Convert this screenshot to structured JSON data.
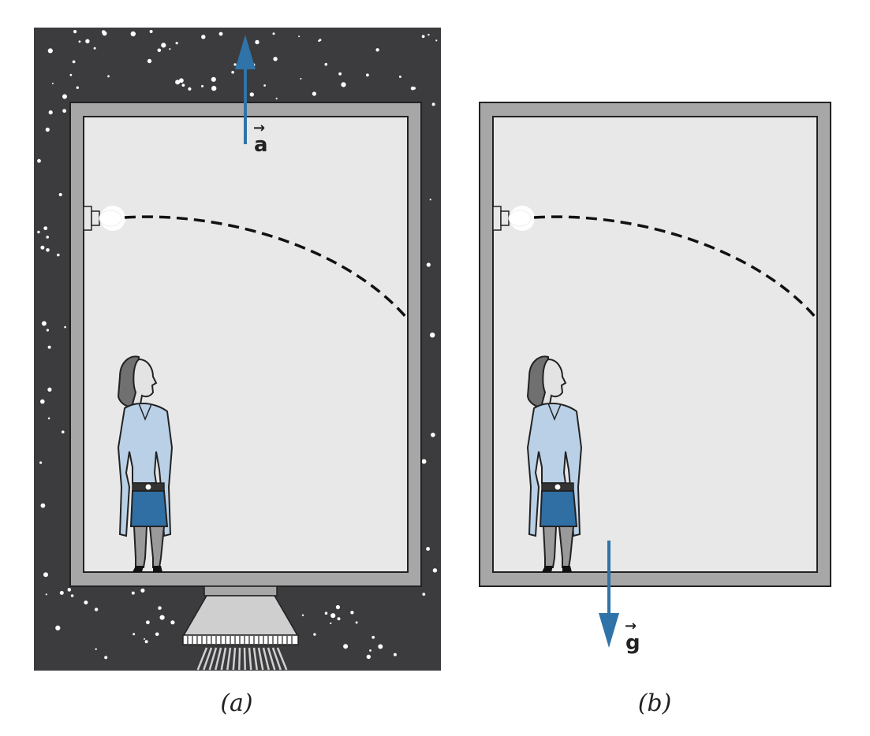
{
  "panels": [
    {
      "id": "a",
      "caption": "(a)",
      "vector_label": "a",
      "vector_direction": "up",
      "background": "space-with-rocket-thruster"
    },
    {
      "id": "b",
      "caption": "(b)",
      "vector_label": "g",
      "vector_direction": "down",
      "background": "plain"
    }
  ],
  "colors": {
    "space": "#3c3b3d",
    "wall": "#a7a7a7",
    "interior": "#e8e8e8",
    "vector": "#2f73a8",
    "shirt": "#b9d0e6",
    "skirt": "#2f6fa4",
    "legs": "#9a9a9a",
    "hair": "#707070"
  },
  "icons": [
    "light-bulb-icon",
    "woman-figure-icon",
    "rocket-thruster-icon",
    "arrow-vector-icon"
  ]
}
